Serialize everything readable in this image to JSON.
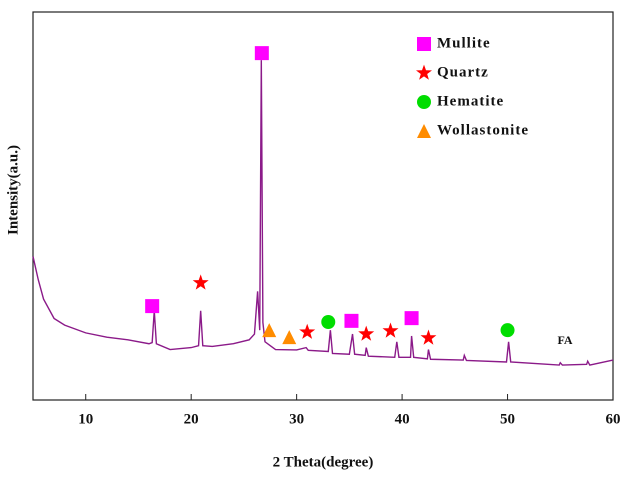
{
  "chart_data": {
    "type": "line",
    "x_label": "2 Theta(degree)",
    "y_label": "Intensity(a.u.)",
    "annotation": "FA",
    "xlim": [
      5,
      60
    ],
    "xticks": [
      10,
      20,
      30,
      40,
      50,
      60
    ],
    "ylim": [
      0,
      100
    ],
    "x": [
      5,
      5.5,
      6,
      7,
      8,
      10,
      12,
      14,
      16,
      16.3,
      16.5,
      16.7,
      18,
      20,
      20.7,
      20.9,
      21.1,
      22,
      24,
      25.5,
      26,
      26.3,
      26.5,
      26.65,
      26.8,
      27,
      27.5,
      28,
      30,
      30.9,
      31.1,
      33,
      33.2,
      33.4,
      35,
      35.3,
      35.5,
      36.5,
      36.6,
      36.8,
      39.3,
      39.5,
      39.7,
      40.8,
      40.9,
      41.1,
      42.4,
      42.5,
      42.7,
      45.8,
      45.9,
      46.1,
      49.9,
      50.1,
      50.3,
      54.9,
      55,
      55.2,
      57.5,
      57.6,
      57.8,
      60
    ],
    "series": [
      {
        "name": "FA",
        "color": "#8b1a89",
        "values": [
          37,
          31,
          26,
          21,
          19.3,
          17.3,
          16.2,
          15.5,
          14.5,
          14.8,
          23,
          14.5,
          13,
          13.5,
          14,
          23,
          14,
          13.8,
          14.5,
          15.5,
          17,
          28,
          18,
          87.6,
          20,
          15,
          14,
          13,
          12.9,
          13.5,
          12.8,
          12.5,
          18,
          12,
          11.8,
          17,
          11.8,
          11.5,
          13.5,
          11.3,
          11,
          15,
          11,
          11,
          16.5,
          11,
          10.6,
          13,
          10.5,
          10.3,
          11.5,
          10.2,
          9.8,
          15,
          9.8,
          9,
          9.6,
          9,
          9.2,
          10,
          9,
          10.3
        ]
      }
    ],
    "phases": [
      {
        "name": "Mullite",
        "color": "#ff00ff",
        "shape": "square",
        "x": [
          16.3,
          26.7,
          35.2,
          40.9
        ],
        "y": [
          24.2,
          89.4,
          20.4,
          21.1
        ]
      },
      {
        "name": "Quartz",
        "color": "#ff0000",
        "shape": "star",
        "x": [
          20.9,
          31,
          36.6,
          38.9,
          42.5
        ],
        "y": [
          30.2,
          17.5,
          17,
          17.8,
          16
        ]
      },
      {
        "name": "Hematite",
        "color": "#00dd00",
        "shape": "circle",
        "x": [
          33,
          50
        ],
        "y": [
          20.1,
          18
        ]
      },
      {
        "name": "Wollastonite",
        "color": "#ff8c00",
        "shape": "triangle",
        "x": [
          27.4,
          29.3
        ],
        "y": [
          18,
          16.2
        ]
      }
    ]
  }
}
